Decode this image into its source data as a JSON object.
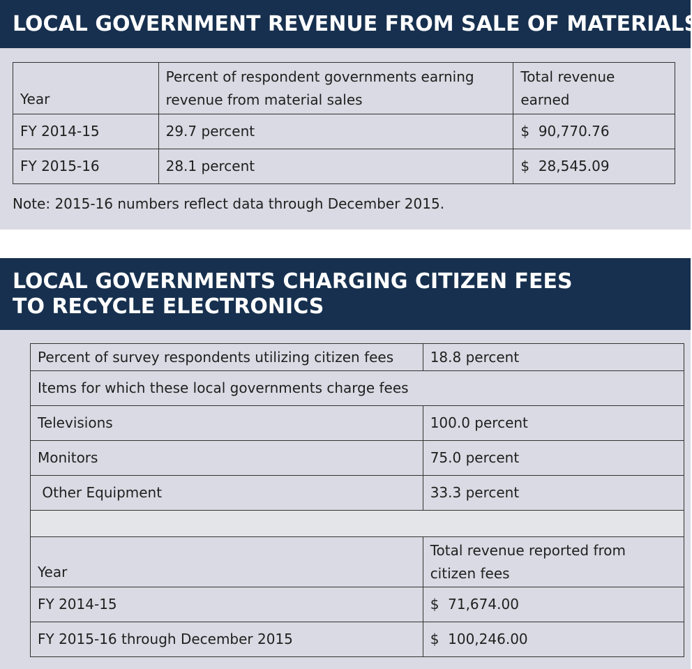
{
  "materials": {
    "title": "LOCAL GOVERNMENT REVENUE FROM SALE OF MATERIALS",
    "headers": {
      "year": "Year",
      "percent": "Percent of respondent governments earning revenue from material sales",
      "percent_line1": "Percent of respondent governments earning",
      "percent_line2": "revenue from material sales",
      "revenue_line1": "Total revenue",
      "revenue_line2": "earned"
    },
    "rows": [
      {
        "year": "FY 2014-15",
        "percent": "29.7 percent",
        "revenue": "$  90,770.76"
      },
      {
        "year": "FY 2015-16",
        "percent": "28.1 percent",
        "revenue": "$  28,545.09"
      }
    ],
    "note": "Note: 2015-16 numbers reflect data through December 2015."
  },
  "electronics": {
    "title_line1": "LOCAL GOVERNMENTS CHARGING CITIZEN FEES",
    "title_line2": "TO RECYCLE ELECTRONICS",
    "respondents_label": "Percent of survey respondents utilizing citizen fees",
    "respondents_value": "18.8 percent",
    "items_heading": "Items for which these local governments charge fees",
    "items": [
      {
        "label": "Televisions",
        "value": "100.0 percent"
      },
      {
        "label": "Monitors",
        "value": "75.0 percent"
      },
      {
        "label": " Other Equipment",
        "value": "33.3 percent"
      }
    ],
    "revenue_headers": {
      "year": "Year",
      "revenue_line1": "Total revenue reported from",
      "revenue_line2": "citizen fees"
    },
    "revenue_rows": [
      {
        "year": "FY 2014-15",
        "revenue": "$  71,674.00"
      },
      {
        "year": "FY 2015-16 through December 2015",
        "revenue": "$  100,246.00"
      }
    ]
  }
}
